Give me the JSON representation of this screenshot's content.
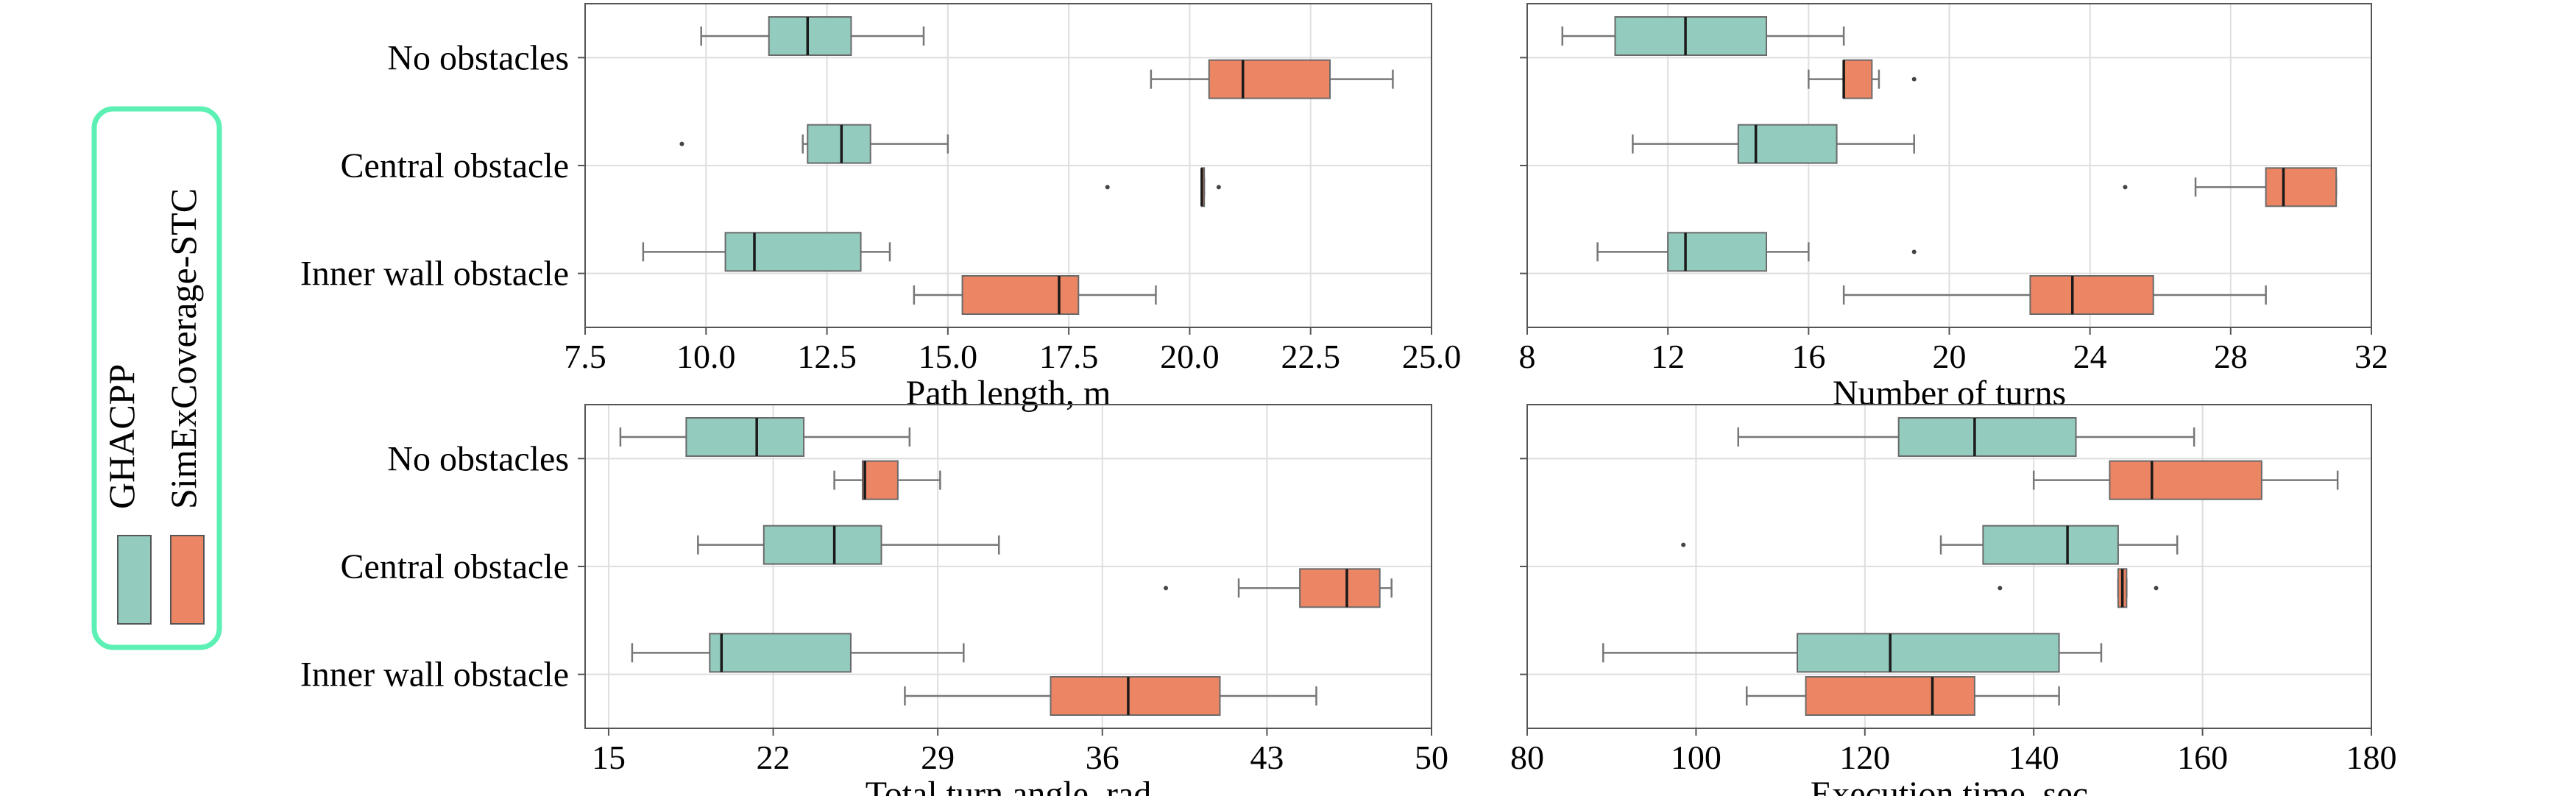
{
  "colors": {
    "ghacpp": "#93cbbe",
    "simex": "#ec8563",
    "legend_border": "#5df0b4",
    "median": "#1a1a1a",
    "grid": "#dedede",
    "axis": "#555555",
    "whisker": "#777777"
  },
  "legend": {
    "entries": [
      {
        "label": "GHACPP",
        "color_key": "ghacpp"
      },
      {
        "label": "SimExCoverage-STC",
        "color_key": "simex"
      }
    ]
  },
  "chart_data": [
    {
      "type": "box",
      "xlabel": "Path length, m",
      "xlim": [
        7.5,
        25.0
      ],
      "xticks": [
        7.5,
        10.0,
        12.5,
        15.0,
        17.5,
        20.0,
        22.5,
        25.0
      ],
      "tick_labels": [
        "7.5",
        "10.0",
        "12.5",
        "15.0",
        "17.5",
        "20.0",
        "22.5",
        "25.0"
      ],
      "categories": [
        "No obstacles",
        "Central obstacle",
        "Inner wall obstacle"
      ],
      "series": [
        {
          "name": "GHACPP",
          "boxes": [
            {
              "min": 9.9,
              "q1": 11.3,
              "median": 12.1,
              "q3": 13.0,
              "max": 14.5,
              "outliers": []
            },
            {
              "min": 12.0,
              "q1": 12.1,
              "median": 12.8,
              "q3": 13.4,
              "max": 15.0,
              "outliers": [
                9.5
              ]
            },
            {
              "min": 8.7,
              "q1": 10.4,
              "median": 11.0,
              "q3": 13.2,
              "max": 13.8,
              "outliers": []
            }
          ]
        },
        {
          "name": "SimExCoverage-STC",
          "boxes": [
            {
              "min": 19.2,
              "q1": 20.4,
              "median": 21.1,
              "q3": 22.9,
              "max": 24.2,
              "outliers": []
            },
            {
              "min": 20.25,
              "q1": 20.25,
              "median": 20.25,
              "q3": 20.3,
              "max": 20.3,
              "outliers": [
                18.3,
                20.6
              ]
            },
            {
              "min": 14.3,
              "q1": 15.3,
              "median": 17.3,
              "q3": 17.7,
              "max": 19.3,
              "outliers": []
            }
          ]
        }
      ]
    },
    {
      "type": "box",
      "xlabel": "Number of turns",
      "xlim": [
        8,
        32
      ],
      "xticks": [
        8,
        12,
        16,
        20,
        24,
        28,
        32
      ],
      "tick_labels": [
        "8",
        "12",
        "16",
        "20",
        "24",
        "28",
        "32"
      ],
      "categories": [
        "No obstacles",
        "Central obstacle",
        "Inner wall obstacle"
      ],
      "series": [
        {
          "name": "GHACPP",
          "boxes": [
            {
              "min": 9,
              "q1": 10.5,
              "median": 12.5,
              "q3": 14.8,
              "max": 17,
              "outliers": []
            },
            {
              "min": 11,
              "q1": 14,
              "median": 14.5,
              "q3": 16.8,
              "max": 19,
              "outliers": []
            },
            {
              "min": 10,
              "q1": 12,
              "median": 12.5,
              "q3": 14.8,
              "max": 16,
              "outliers": [
                19
              ]
            }
          ]
        },
        {
          "name": "SimExCoverage-STC",
          "boxes": [
            {
              "min": 16,
              "q1": 17,
              "median": 17,
              "q3": 17.8,
              "max": 18,
              "outliers": [
                19
              ]
            },
            {
              "min": 27,
              "q1": 29,
              "median": 29.5,
              "q3": 31,
              "max": 31,
              "outliers": [
                25
              ]
            },
            {
              "min": 17,
              "q1": 22.3,
              "median": 23.5,
              "q3": 25.8,
              "max": 29,
              "outliers": []
            }
          ]
        }
      ]
    },
    {
      "type": "box",
      "xlabel": "Total turn angle, rad",
      "xlim": [
        14,
        50
      ],
      "xticks": [
        15,
        22,
        29,
        36,
        43,
        50
      ],
      "tick_labels": [
        "15",
        "22",
        "29",
        "36",
        "43",
        "50"
      ],
      "categories": [
        "No obstacles",
        "Central obstacle",
        "Inner wall obstacle"
      ],
      "series": [
        {
          "name": "GHACPP",
          "boxes": [
            {
              "min": 15.5,
              "q1": 18.3,
              "median": 21.3,
              "q3": 23.3,
              "max": 27.8,
              "outliers": []
            },
            {
              "min": 18.8,
              "q1": 21.6,
              "median": 24.6,
              "q3": 26.6,
              "max": 31.6,
              "outliers": []
            },
            {
              "min": 16.0,
              "q1": 19.3,
              "median": 19.8,
              "q3": 25.3,
              "max": 30.1,
              "outliers": []
            }
          ]
        },
        {
          "name": "SimExCoverage-STC",
          "boxes": [
            {
              "min": 24.6,
              "q1": 25.8,
              "median": 25.9,
              "q3": 27.3,
              "max": 29.1,
              "outliers": []
            },
            {
              "min": 41.8,
              "q1": 44.4,
              "median": 46.4,
              "q3": 47.8,
              "max": 48.3,
              "outliers": [
                38.7
              ]
            },
            {
              "min": 27.6,
              "q1": 33.8,
              "median": 37.1,
              "q3": 41.0,
              "max": 45.1,
              "outliers": []
            }
          ]
        }
      ]
    },
    {
      "type": "box",
      "xlabel": "Execution time, sec",
      "xlim": [
        80,
        180
      ],
      "xticks": [
        80,
        100,
        120,
        140,
        160,
        180
      ],
      "tick_labels": [
        "80",
        "100",
        "120",
        "140",
        "160",
        "180"
      ],
      "categories": [
        "No obstacles",
        "Central obstacle",
        "Inner wall obstacle"
      ],
      "series": [
        {
          "name": "GHACPP",
          "boxes": [
            {
              "min": 105,
              "q1": 124,
              "median": 133,
              "q3": 145,
              "max": 159,
              "outliers": []
            },
            {
              "min": 129,
              "q1": 134,
              "median": 144,
              "q3": 150,
              "max": 157,
              "outliers": [
                98.5
              ]
            },
            {
              "min": 89,
              "q1": 112,
              "median": 123,
              "q3": 143,
              "max": 148,
              "outliers": []
            }
          ]
        },
        {
          "name": "SimExCoverage-STC",
          "boxes": [
            {
              "min": 140,
              "q1": 149,
              "median": 154,
              "q3": 167,
              "max": 176,
              "outliers": []
            },
            {
              "min": 150,
              "q1": 150,
              "median": 150.5,
              "q3": 151,
              "max": 151,
              "outliers": [
                136,
                154.5
              ]
            },
            {
              "min": 106,
              "q1": 113,
              "median": 128,
              "q3": 133,
              "max": 143,
              "outliers": []
            }
          ]
        }
      ]
    }
  ]
}
